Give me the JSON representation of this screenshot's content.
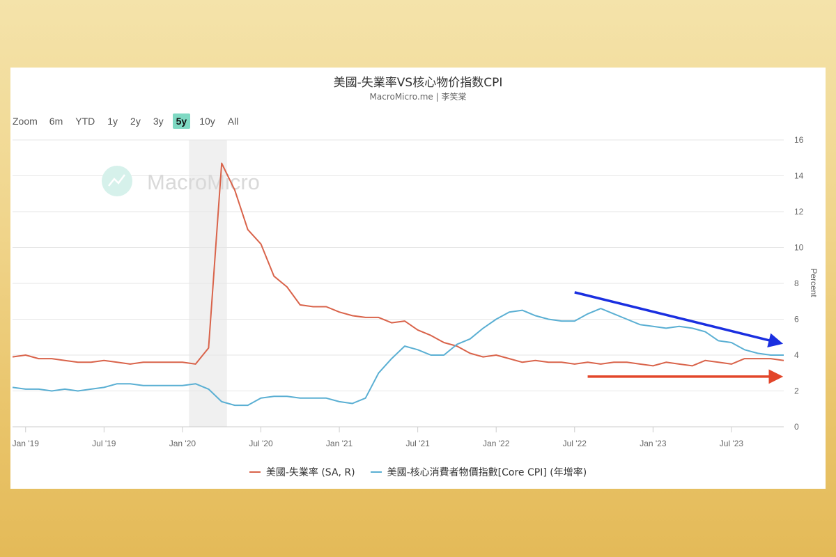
{
  "header": {
    "title": "美國-失業率VS核心物价指数CPI",
    "subtitle": "MacroMicro.me | 李笑棠"
  },
  "zoom_bar": {
    "label": "Zoom",
    "buttons": [
      {
        "label": "6m",
        "active": false
      },
      {
        "label": "YTD",
        "active": false
      },
      {
        "label": "1y",
        "active": false
      },
      {
        "label": "2y",
        "active": false
      },
      {
        "label": "3y",
        "active": false
      },
      {
        "label": "5y",
        "active": true
      },
      {
        "label": "10y",
        "active": false
      },
      {
        "label": "All",
        "active": false
      }
    ]
  },
  "watermark": {
    "text": "MacroMicro"
  },
  "colors": {
    "unemployment": "#d9634a",
    "core_cpi": "#5aafd3",
    "blue_arrow": "#1a2fe0",
    "red_arrow": "#e2462a",
    "active_zoom": "#7fd9c3",
    "recession_band": "#f0f0f0"
  },
  "chart_data": {
    "type": "line",
    "title": "美國-失業率VS核心物价指数CPI",
    "subtitle": "MacroMicro.me | 李笑棠",
    "xlabel": "",
    "ylabel": "Percent",
    "ylim": [
      0,
      16
    ],
    "yticks": [
      0,
      2,
      4,
      6,
      8,
      10,
      12,
      14,
      16
    ],
    "xtick_labels": [
      "Jan '19",
      "Jul '19",
      "Jan '20",
      "Jul '20",
      "Jan '21",
      "Jul '21",
      "Jan '22",
      "Jul '22",
      "Jan '23",
      "Jul '23"
    ],
    "grid": true,
    "legend_position": "bottom",
    "recession_shading": {
      "start": "2020-02",
      "end": "2020-04"
    },
    "x": [
      "2018-12",
      "2019-01",
      "2019-02",
      "2019-03",
      "2019-04",
      "2019-05",
      "2019-06",
      "2019-07",
      "2019-08",
      "2019-09",
      "2019-10",
      "2019-11",
      "2019-12",
      "2020-01",
      "2020-02",
      "2020-03",
      "2020-04",
      "2020-05",
      "2020-06",
      "2020-07",
      "2020-08",
      "2020-09",
      "2020-10",
      "2020-11",
      "2020-12",
      "2021-01",
      "2021-02",
      "2021-03",
      "2021-04",
      "2021-05",
      "2021-06",
      "2021-07",
      "2021-08",
      "2021-09",
      "2021-10",
      "2021-11",
      "2021-12",
      "2022-01",
      "2022-02",
      "2022-03",
      "2022-04",
      "2022-05",
      "2022-06",
      "2022-07",
      "2022-08",
      "2022-09",
      "2022-10",
      "2022-11",
      "2022-12",
      "2023-01",
      "2023-02",
      "2023-03",
      "2023-04",
      "2023-05",
      "2023-06",
      "2023-07",
      "2023-08",
      "2023-09",
      "2023-10",
      "2023-11"
    ],
    "series": [
      {
        "name": "美國-失業率 (SA, R)",
        "values": [
          3.9,
          4.0,
          3.8,
          3.8,
          3.7,
          3.6,
          3.6,
          3.7,
          3.6,
          3.5,
          3.6,
          3.6,
          3.6,
          3.6,
          3.5,
          4.4,
          14.7,
          13.2,
          11.0,
          10.2,
          8.4,
          7.8,
          6.8,
          6.7,
          6.7,
          6.4,
          6.2,
          6.1,
          6.1,
          5.8,
          5.9,
          5.4,
          5.1,
          4.7,
          4.5,
          4.1,
          3.9,
          4.0,
          3.8,
          3.6,
          3.7,
          3.6,
          3.6,
          3.5,
          3.6,
          3.5,
          3.6,
          3.6,
          3.5,
          3.4,
          3.6,
          3.5,
          3.4,
          3.7,
          3.6,
          3.5,
          3.8,
          3.8,
          3.8,
          3.7
        ]
      },
      {
        "name": "美國-核心消費者物價指數[Core CPI] (年增率)",
        "values": [
          2.2,
          2.1,
          2.1,
          2.0,
          2.1,
          2.0,
          2.1,
          2.2,
          2.4,
          2.4,
          2.3,
          2.3,
          2.3,
          2.3,
          2.4,
          2.1,
          1.4,
          1.2,
          1.2,
          1.6,
          1.7,
          1.7,
          1.6,
          1.6,
          1.6,
          1.4,
          1.3,
          1.6,
          3.0,
          3.8,
          4.5,
          4.3,
          4.0,
          4.0,
          4.6,
          4.9,
          5.5,
          6.0,
          6.4,
          6.5,
          6.2,
          6.0,
          5.9,
          5.9,
          6.3,
          6.6,
          6.3,
          6.0,
          5.7,
          5.6,
          5.5,
          5.6,
          5.5,
          5.3,
          4.8,
          4.7,
          4.3,
          4.1,
          4.0,
          4.0
        ]
      }
    ],
    "annotations": [
      {
        "type": "arrow",
        "color": "blue",
        "description": "Downward trend arrow over Core CPI",
        "from": [
          "2022-07",
          7.5
        ],
        "to": [
          "2023-11",
          4.6
        ]
      },
      {
        "type": "arrow",
        "color": "red",
        "description": "Flat arrow below unemployment",
        "from": [
          "2022-08",
          2.8
        ],
        "to": [
          "2023-11",
          2.8
        ]
      }
    ]
  },
  "legend": {
    "items": [
      {
        "label": "美國-失業率 (SA, R)"
      },
      {
        "label": "美國-核心消費者物價指數[Core CPI] (年增率)"
      }
    ]
  }
}
